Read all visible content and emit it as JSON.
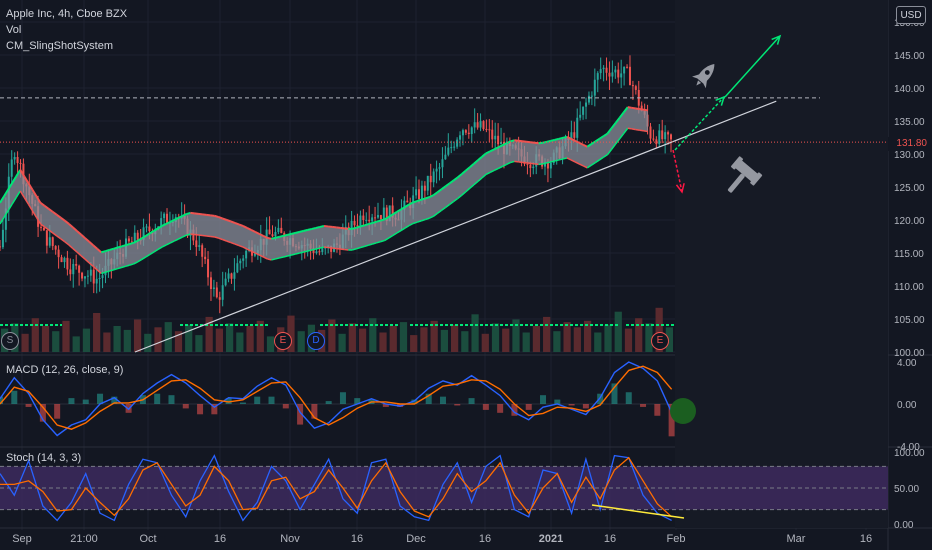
{
  "legend": {
    "symbol_line": "Apple Inc, 4h, Cboe BZX",
    "vol_label": "Vol",
    "indicator_label": "CM_SlingShotSystem"
  },
  "currency_badge": "USD",
  "last_price_flag": "131.80",
  "markers": {
    "s": "S",
    "e1": "E",
    "d": "D",
    "e2": "E"
  },
  "macd_label": "MACD (12, 26, close, 9)",
  "stoch_label": "Stoch (14, 3, 3)",
  "colors": {
    "background": "#131722",
    "up": "#26a69a",
    "down": "#ef5350",
    "macd": "#2962ff",
    "signal": "#ff6d00",
    "stoch_k": "#2962ff",
    "stoch_d": "#ff6d00",
    "stoch_band": "#7e57c2",
    "trendline": "#d1d4dc",
    "arrow_up": "#00e676",
    "arrow_down": "#ff1744",
    "ema_fast": "#00e676",
    "ema_slow": "#ef5350",
    "marker_s": "#8a8e99",
    "marker_e": "#ef5350",
    "marker_d": "#2962ff",
    "dot": "#1b5e20",
    "divergence": "#ffeb3b"
  },
  "icons": {
    "up_target": "rocket-icon",
    "down_target": "gavel-icon"
  },
  "chart_data": [
    {
      "type": "candlestick",
      "title": "Apple Inc, 4h, Cboe BZX",
      "ylabel": "USD",
      "x_tick_labels": [
        "Sep",
        "21:00",
        "Oct",
        "16",
        "Nov",
        "16",
        "Dec",
        "16",
        "2021",
        "16",
        "Feb",
        "Mar",
        "16"
      ],
      "y_tick_labels": [
        "100.00",
        "105.00",
        "110.00",
        "115.00",
        "120.00",
        "125.00",
        "130.00",
        "135.00",
        "140.00",
        "145.00",
        "150.00"
      ],
      "ylim": [
        100,
        150
      ],
      "grid": true,
      "price_path": [
        [
          0,
          116
        ],
        [
          0.02,
          131
        ],
        [
          0.06,
          118
        ],
        [
          0.1,
          113
        ],
        [
          0.14,
          111
        ],
        [
          0.18,
          116
        ],
        [
          0.22,
          119
        ],
        [
          0.25,
          121
        ],
        [
          0.28,
          117
        ],
        [
          0.31,
          108
        ],
        [
          0.35,
          115
        ],
        [
          0.39,
          118
        ],
        [
          0.42,
          117
        ],
        [
          0.46,
          115
        ],
        [
          0.48,
          116
        ],
        [
          0.52,
          121
        ],
        [
          0.57,
          121
        ],
        [
          0.6,
          124
        ],
        [
          0.63,
          128
        ],
        [
          0.66,
          134
        ],
        [
          0.69,
          134
        ],
        [
          0.72,
          131
        ],
        [
          0.76,
          129
        ],
        [
          0.79,
          129
        ],
        [
          0.82,
          133
        ],
        [
          0.86,
          143
        ],
        [
          0.9,
          142
        ],
        [
          0.93,
          133
        ],
        [
          0.96,
          131.8
        ]
      ],
      "sma_path": [
        [
          0,
          121
        ],
        [
          0.03,
          126
        ],
        [
          0.06,
          121
        ],
        [
          0.1,
          118
        ],
        [
          0.15,
          113.5
        ],
        [
          0.2,
          115
        ],
        [
          0.24,
          117.5
        ],
        [
          0.28,
          119.5
        ],
        [
          0.32,
          119
        ],
        [
          0.36,
          117.5
        ],
        [
          0.4,
          115.5
        ],
        [
          0.44,
          116.5
        ],
        [
          0.48,
          117.5
        ],
        [
          0.52,
          117
        ],
        [
          0.57,
          118.5
        ],
        [
          0.61,
          121
        ],
        [
          0.64,
          122
        ],
        [
          0.68,
          125
        ],
        [
          0.72,
          128.5
        ],
        [
          0.76,
          130.5
        ],
        [
          0.8,
          130
        ],
        [
          0.84,
          131
        ],
        [
          0.87,
          129.5
        ],
        [
          0.9,
          131.5
        ],
        [
          0.93,
          135.5
        ],
        [
          0.96,
          135
        ]
      ],
      "volume": [
        18,
        22,
        14,
        26,
        20,
        16,
        24,
        12,
        18,
        30,
        15,
        20,
        17,
        25,
        14,
        19,
        23,
        16,
        21,
        13,
        27,
        18,
        22,
        15,
        20,
        24,
        12,
        19,
        28,
        16,
        21,
        17,
        25,
        14,
        22,
        18,
        26,
        15,
        20,
        23,
        13,
        19,
        24,
        17,
        21,
        16,
        29,
        14,
        22,
        18,
        25,
        15,
        20,
        27,
        16,
        23,
        19,
        24,
        15,
        21,
        31,
        18,
        26,
        22,
        34,
        19
      ],
      "last_price": 131.8,
      "trendline": {
        "x_range": [
          0.2,
          1.15
        ],
        "y": [
          100,
          138
        ]
      },
      "resistance_level": 138.5,
      "arrows": [
        {
          "direction": "up",
          "from": [
            0.94,
            131
          ],
          "to": [
            1.07,
            138.5
          ]
        },
        {
          "direction": "up",
          "from": [
            1.04,
            138.5
          ],
          "to": [
            1.1,
            147.5
          ]
        },
        {
          "direction": "down",
          "from": [
            0.95,
            131
          ],
          "to": [
            0.98,
            125
          ]
        }
      ]
    },
    {
      "type": "line",
      "title": "MACD (12, 26, close, 9)",
      "y_tick_labels": [
        "4.00",
        "0.00",
        "-4.00"
      ],
      "ylim": [
        -4,
        4
      ],
      "series": [
        {
          "values": [
            0.5,
            2.5,
            1,
            -1.5,
            -3,
            -2,
            -1.5,
            0,
            0.6,
            -0.5,
            1,
            2,
            2.8,
            2,
            0.8,
            -0.3,
            0.6,
            0.5,
            1.7,
            2.5,
            1.8,
            -0.8,
            -2.3,
            -1.8,
            -0.5,
            0,
            0.5,
            0,
            -0.2,
            0.3,
            1.5,
            2.2,
            1.8,
            2.7,
            1.8,
            0.8,
            -0.8,
            -1.5,
            -0.3,
            0,
            -0.5,
            -1,
            0.6,
            3,
            4,
            3.4,
            2.2,
            -0.8
          ]
        },
        {
          "values": [
            0,
            1.6,
            1.2,
            -0.3,
            -2,
            -2.4,
            -1.8,
            -0.7,
            0.1,
            0.1,
            0.4,
            1.3,
            2.2,
            2.3,
            1.5,
            0.4,
            0.2,
            0.4,
            1.2,
            2,
            2.1,
            0.6,
            -1.3,
            -2,
            -1.3,
            -0.4,
            0.2,
            0.2,
            0,
            0,
            0.8,
            1.7,
            1.9,
            2.3,
            2.2,
            1.4,
            0,
            -1.1,
            -0.9,
            -0.3,
            -0.4,
            -0.7,
            -0.1,
            1.6,
            3.2,
            3.6,
            3,
            1.4
          ]
        }
      ]
    },
    {
      "type": "line",
      "title": "Stoch (14, 3, 3)",
      "y_tick_labels": [
        "100.00",
        "50.00",
        "0.00"
      ],
      "ylim": [
        0,
        100
      ],
      "band": [
        20,
        80
      ],
      "series": [
        {
          "values": [
            70,
            40,
            88,
            25,
            5,
            30,
            70,
            15,
            5,
            55,
            90,
            85,
            40,
            10,
            60,
            95,
            45,
            5,
            30,
            80,
            60,
            20,
            55,
            90,
            35,
            15,
            85,
            90,
            25,
            10,
            5,
            55,
            85,
            30,
            80,
            95,
            20,
            10,
            75,
            70,
            15,
            90,
            20,
            95,
            92,
            40,
            15,
            5
          ]
        },
        {
          "values": [
            55,
            55,
            60,
            45,
            18,
            20,
            50,
            30,
            12,
            35,
            75,
            85,
            55,
            25,
            40,
            80,
            60,
            20,
            22,
            60,
            65,
            35,
            45,
            75,
            50,
            22,
            60,
            85,
            45,
            18,
            10,
            35,
            70,
            45,
            60,
            85,
            40,
            15,
            50,
            70,
            30,
            65,
            35,
            75,
            92,
            60,
            28,
            10
          ]
        }
      ]
    }
  ]
}
